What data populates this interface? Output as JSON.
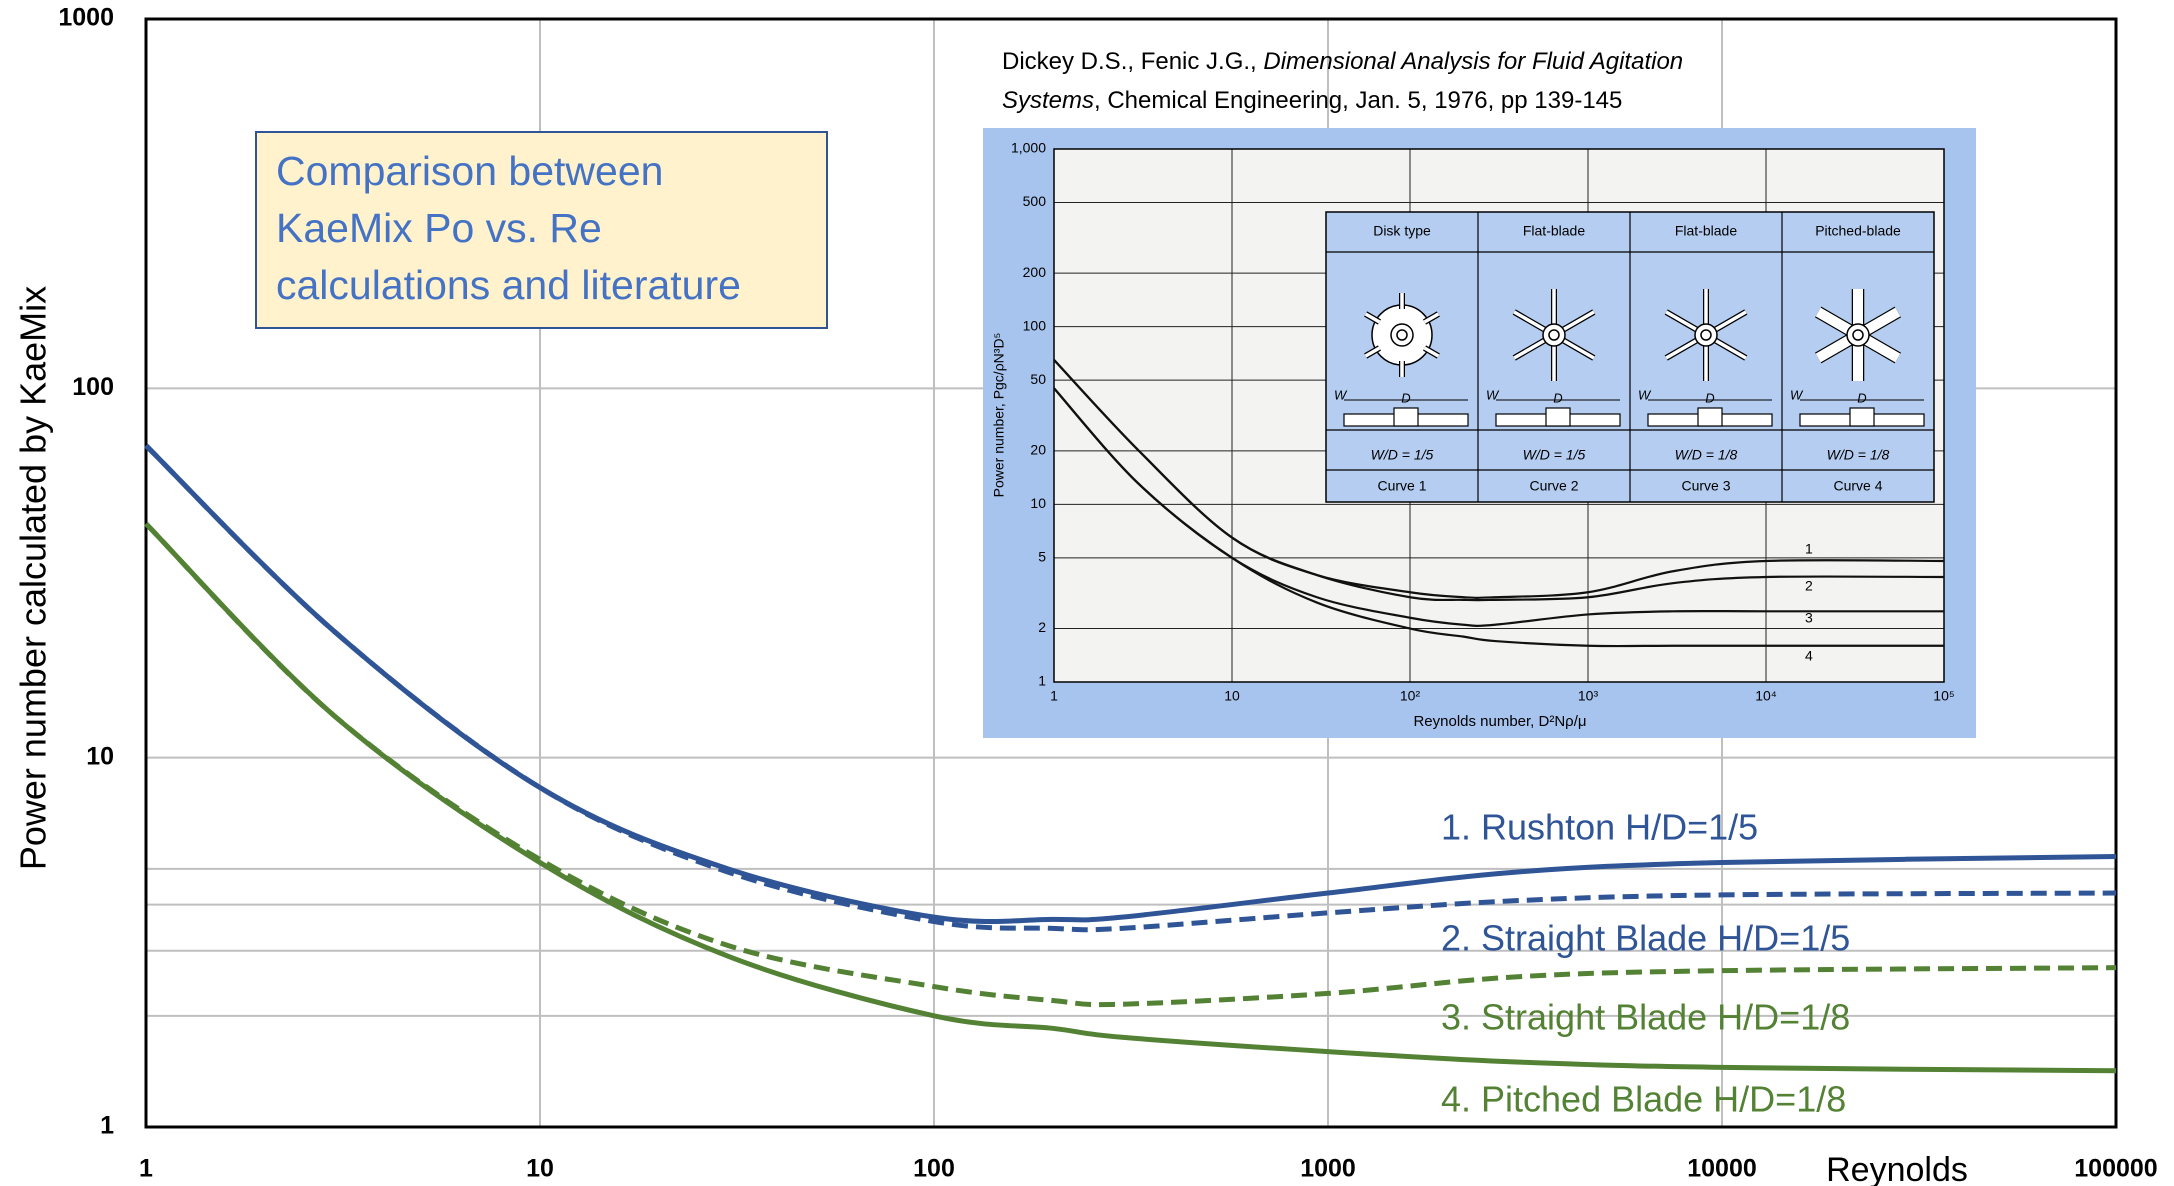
{
  "chart_data": [
    {
      "type": "line",
      "x_label": "Reynolds",
      "y_label": "Power number calculated by KaeMix",
      "annotation": [
        "Comparison between",
        "KaeMix Po vs. Re",
        "calculations and literature"
      ],
      "citation": [
        "Dickey D.S., Fenic J.G., ",
        "Dimensional Analysis for Fluid Agitation",
        "Systems",
        ", Chemical Engineering, Jan. 5, 1976, pp 139-145"
      ],
      "x_log": true,
      "y_log": true,
      "xlim": [
        1,
        100000
      ],
      "ylim": [
        1,
        1000
      ],
      "xticks": [
        1,
        10,
        100,
        1000,
        10000,
        100000
      ],
      "yticks": [
        1,
        10,
        100,
        1000
      ],
      "yminor": [
        2,
        3,
        4,
        5
      ],
      "grid": true,
      "x": [
        1,
        3,
        10,
        30,
        100,
        200,
        300,
        1000,
        3000,
        10000,
        100000
      ],
      "series": [
        {
          "name": "1. Rushton H/D=1/5",
          "color": "#2f5597",
          "dash": false,
          "values": [
            70,
            22,
            8.3,
            5.0,
            3.7,
            3.65,
            3.7,
            4.3,
            4.9,
            5.2,
            5.4
          ]
        },
        {
          "name": "2. Straight Blade H/D=1/5",
          "color": "#2f5597",
          "dash": true,
          "values": [
            70,
            22,
            8.3,
            4.9,
            3.6,
            3.45,
            3.45,
            3.8,
            4.1,
            4.25,
            4.3
          ]
        },
        {
          "name": "3. Straight Blade H/D=1/8",
          "color": "#548235",
          "dash": true,
          "values": [
            43,
            13,
            5.3,
            3.1,
            2.4,
            2.2,
            2.15,
            2.3,
            2.55,
            2.65,
            2.7
          ]
        },
        {
          "name": "4. Pitched Blade H/D=1/8",
          "color": "#548235",
          "dash": false,
          "values": [
            43,
            13,
            5.2,
            2.9,
            2.0,
            1.85,
            1.75,
            1.6,
            1.5,
            1.45,
            1.42
          ]
        }
      ]
    },
    {
      "type": "line",
      "x_label": "Reynolds number, D²Nρ/μ",
      "y_label": "Power number, Pgc/ρN³D⁵",
      "x_log": true,
      "y_log": true,
      "xlim": [
        1,
        100000
      ],
      "ylim": [
        1,
        1000
      ],
      "xticks": [
        1,
        10,
        {
          "value": 100,
          "label": "10²"
        },
        {
          "value": 1000,
          "label": "10³"
        },
        {
          "value": 10000,
          "label": "10⁴"
        },
        {
          "value": 100000,
          "label": "10⁵"
        }
      ],
      "yticks": [
        {
          "value": 1000,
          "label": "1,000"
        },
        500,
        200,
        100,
        50,
        20,
        10,
        5,
        2,
        1
      ],
      "grid": true,
      "x": [
        1,
        3,
        10,
        30,
        100,
        200,
        300,
        1000,
        3000,
        10000,
        100000
      ],
      "series": [
        {
          "name": "1",
          "color": "#111111",
          "values": [
            65,
            20,
            6.5,
            4.0,
            3.2,
            3.0,
            3.0,
            3.2,
            4.2,
            4.8,
            4.8
          ]
        },
        {
          "name": "2",
          "color": "#111111",
          "values": [
            65,
            20,
            6.5,
            4.0,
            3.0,
            2.9,
            2.9,
            3.0,
            3.6,
            3.9,
            3.9
          ]
        },
        {
          "name": "3",
          "color": "#111111",
          "values": [
            45,
            13,
            5.0,
            3.0,
            2.3,
            2.1,
            2.1,
            2.4,
            2.5,
            2.5,
            2.5
          ]
        },
        {
          "name": "4",
          "color": "#111111",
          "values": [
            45,
            13,
            5.0,
            2.8,
            2.0,
            1.8,
            1.7,
            1.6,
            1.6,
            1.6,
            1.6
          ]
        }
      ],
      "impeller_table": {
        "headers": [
          "Disk type",
          "Flat-blade",
          "Flat-blade",
          "Pitched-blade"
        ],
        "dim_labels": [
          "W",
          "D"
        ],
        "ratios": [
          "W/D = 1/5",
          "W/D = 1/5",
          "W/D = 1/8",
          "W/D = 1/8"
        ],
        "curves": [
          "Curve 1",
          "Curve 2",
          "Curve 3",
          "Curve 4"
        ]
      }
    }
  ]
}
